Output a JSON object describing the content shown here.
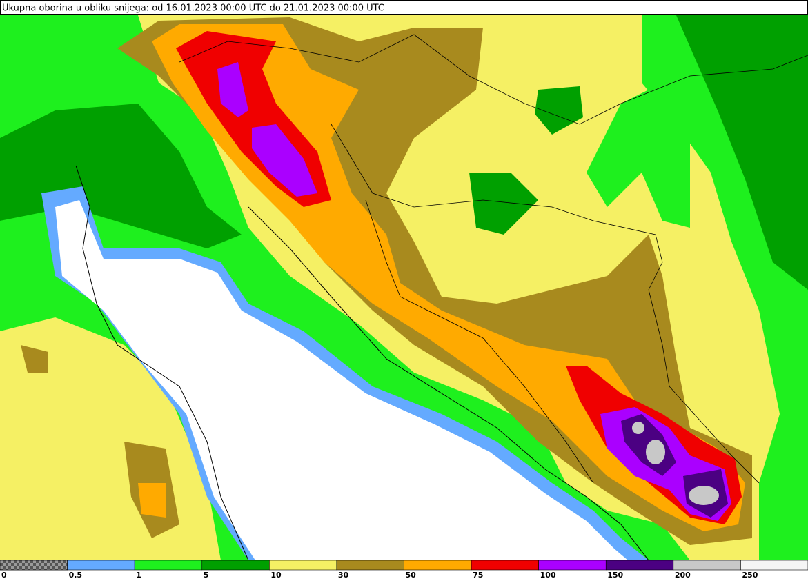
{
  "header": {
    "title": "Ukupna oborina u obliku snijega: od 16.01.2023 00:00 UTC do 21.01.2023 00:00 UTC"
  },
  "legend": {
    "labels": [
      "0",
      "0.5",
      "1",
      "5",
      "10",
      "30",
      "50",
      "75",
      "100",
      "150",
      "200",
      "250"
    ],
    "colors": [
      "#808080",
      "#64aaff",
      "#1ef01e",
      "#00a000",
      "#f5f064",
      "#a88a1e",
      "#ffaa00",
      "#f00000",
      "#aa00ff",
      "#4b0082",
      "#c8c8c8",
      "#f5f5f5"
    ]
  }
}
